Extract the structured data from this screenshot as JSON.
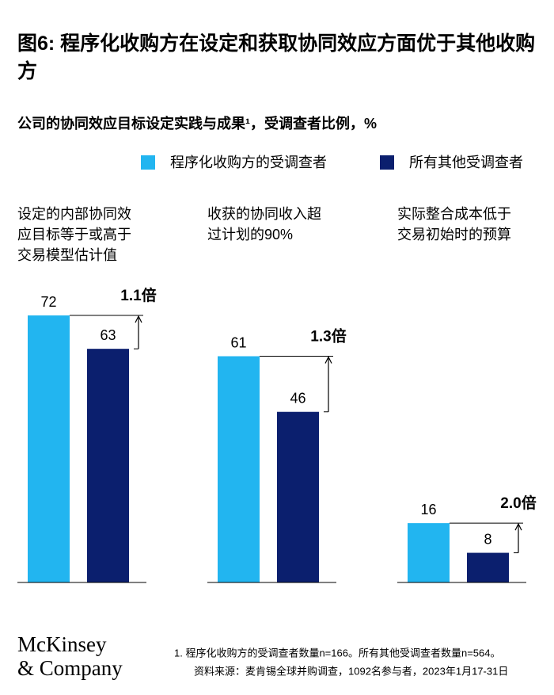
{
  "chart_data": {
    "type": "bar",
    "title": "图6: 程序化收购方在设定和获取协同效应方面优于其他收购方",
    "subtitle": "公司的协同效应目标设定实践与成果¹，受调查者比例，%",
    "categories": [
      "设定的内部协同效应目标等于或高于交易模型估计值",
      "收获的协同收入超过计划的90%",
      "实际整合成本低于交易初始时的预算"
    ],
    "series": [
      {
        "name": "程序化收购方的受调查者",
        "color": "#22b5f0",
        "values": [
          72,
          61,
          16
        ]
      },
      {
        "name": "所有其他受调查者",
        "color": "#0b1f6e",
        "values": [
          63,
          46,
          8
        ]
      }
    ],
    "annotations": [
      "1.1倍",
      "1.3倍",
      "2.0倍"
    ],
    "notes": [
      "1.  程序化收购方的受调查者数量n=166。所有其他受调查者数量n=564。",
      "资料来源：麦肯锡全球并购调查，1092名参与者，2023年1月17-31日"
    ],
    "logo": [
      "McKinsey",
      "& Company"
    ]
  }
}
